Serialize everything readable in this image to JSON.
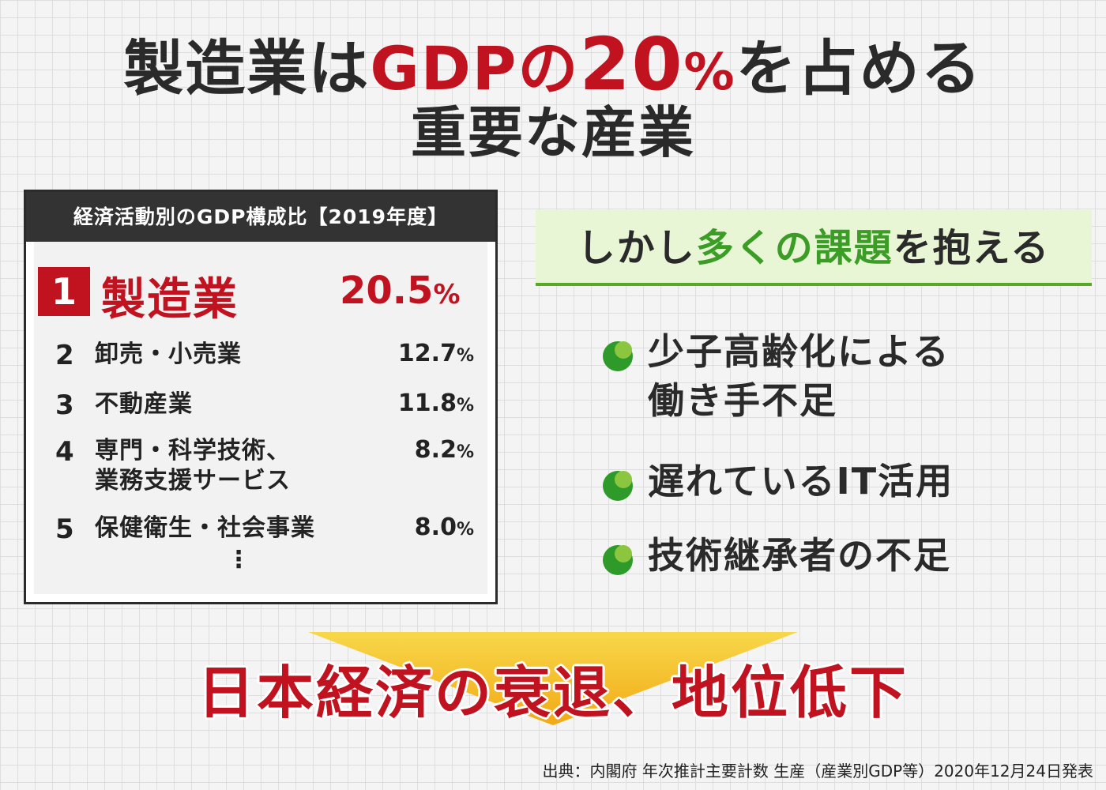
{
  "title": {
    "line1_pre": "製造業は",
    "line1_gdp": "GDPの",
    "line1_num": "20",
    "line1_pct": "%",
    "line1_post": "を占める",
    "line2": "重要な産業"
  },
  "gdp_table": {
    "heading": "経済活動別のGDP構成比【2019年度】",
    "top": {
      "rank": "1",
      "label": "製造業",
      "value": "20.5",
      "unit": "%"
    },
    "rows": [
      {
        "rank": "2",
        "label": "卸売・小売業",
        "value": "12.7",
        "unit": "%"
      },
      {
        "rank": "3",
        "label": "不動産業",
        "value": "11.8",
        "unit": "%"
      },
      {
        "rank": "4",
        "label_line1": "専門・科学技術、",
        "label_line2": "業務支援サービス",
        "value": "8.2",
        "unit": "%"
      },
      {
        "rank": "5",
        "label": "保健衛生・社会事業",
        "value": "8.0",
        "unit": "%"
      }
    ],
    "ellipsis": "⋮"
  },
  "issues": {
    "heading_pre": "しかし",
    "heading_em": "多くの課題",
    "heading_post": "を抱える",
    "items": [
      {
        "line1": "少子高齢化による",
        "line2": "働き手不足"
      },
      {
        "line1": "遅れているIT活用"
      },
      {
        "line1": "技術継承者の不足"
      }
    ]
  },
  "conclusion": "日本経済の衰退、地位低下",
  "source": "出典：内閣府 年次推計主要計数 生産（産業別GDP等）2020年12月24日発表",
  "colors": {
    "accent_red": "#c1121f",
    "accent_green": "#3b9d26",
    "arrow_yellow": "#f5c51a"
  }
}
